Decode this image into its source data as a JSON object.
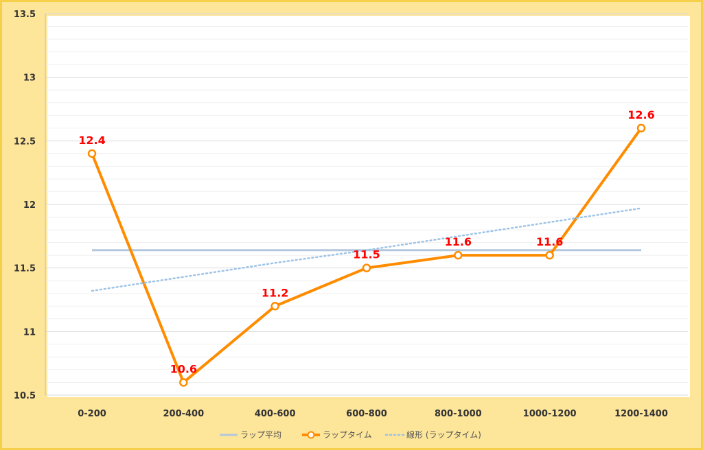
{
  "chart_data": {
    "type": "line",
    "categories": [
      "0-200",
      "200-400",
      "400-600",
      "600-800",
      "800-1000",
      "1000-1200",
      "1200-1400"
    ],
    "ylim": [
      10.5,
      13.5
    ],
    "yticks": [
      "10.5",
      "11",
      "11.5",
      "12",
      "12.5",
      "13",
      "13.5"
    ],
    "grid": true,
    "legend_position": "bottom",
    "series": [
      {
        "name": "ラップ平均",
        "style": "flat",
        "color": "#b4c7dc",
        "values": [
          11.64,
          11.64,
          11.64,
          11.64,
          11.64,
          11.64,
          11.64
        ]
      },
      {
        "name": "ラップタイム",
        "style": "line-marker",
        "color": "#ff8c00",
        "values": [
          12.4,
          10.6,
          11.2,
          11.5,
          11.6,
          11.6,
          12.6
        ],
        "data_labels": [
          "12.4",
          "10.6",
          "11.2",
          "11.5",
          "11.6",
          "11.6",
          "12.6"
        ],
        "label_color": "#ff0000"
      },
      {
        "name": "線形 (ラップタイム)",
        "style": "dotted",
        "color": "#9dc3e6",
        "values": [
          11.32,
          11.43,
          11.54,
          11.64,
          11.75,
          11.86,
          11.97
        ]
      }
    ]
  }
}
